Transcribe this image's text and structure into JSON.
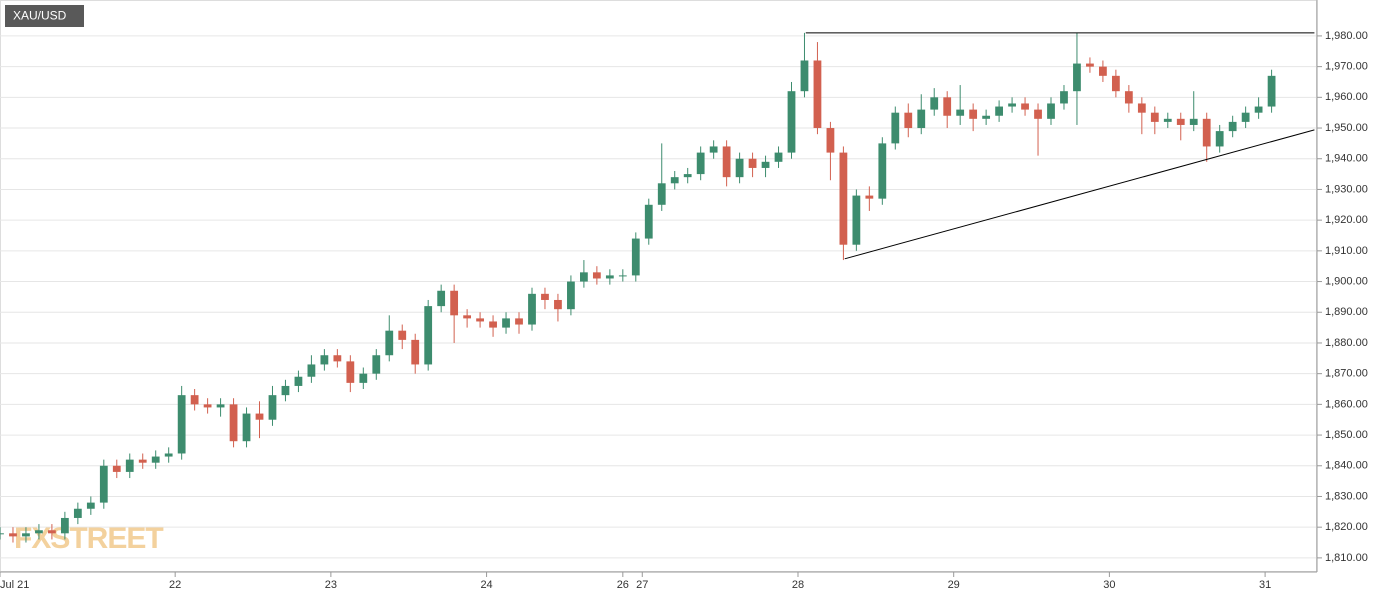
{
  "chart_data": {
    "type": "candlestick",
    "title": "XAU/USD",
    "watermark": "FXSTREET",
    "up_color": "#3d8c6e",
    "down_color": "#d2604f",
    "grid": true,
    "x": [
      0,
      2,
      4,
      6,
      8,
      10,
      12,
      14,
      16,
      18,
      20,
      22,
      24,
      26,
      28,
      30,
      32,
      34,
      36,
      38,
      40,
      42,
      44,
      46,
      48,
      50,
      52,
      54,
      56,
      58,
      60,
      62,
      64,
      66,
      68,
      70,
      72,
      74,
      76,
      78,
      80,
      82,
      84,
      86,
      88,
      90,
      92,
      94,
      96,
      98,
      100,
      102,
      104,
      106,
      108,
      110,
      112,
      114,
      116,
      118,
      120,
      122,
      124,
      126,
      128,
      130,
      132,
      134,
      136,
      138,
      140,
      142,
      144,
      146,
      148,
      150,
      152,
      154,
      156,
      158,
      160,
      162,
      164,
      166,
      168,
      170,
      172,
      174,
      176,
      178,
      180,
      182,
      184,
      186,
      188,
      190,
      192,
      194,
      196
    ],
    "open": [
      1818,
      1818,
      1817,
      1818,
      1819,
      1818,
      1823,
      1826,
      1828,
      1840,
      1838,
      1842,
      1841,
      1843,
      1844,
      1863,
      1860,
      1859,
      1860,
      1848,
      1857,
      1855,
      1863,
      1866,
      1869,
      1873,
      1876,
      1874,
      1867,
      1870,
      1876,
      1884,
      1881,
      1873,
      1892,
      1897,
      1889,
      1888,
      1887,
      1885,
      1888,
      1886,
      1896,
      1894,
      1891,
      1900,
      1903,
      1901,
      1902,
      1902,
      1914,
      1925,
      1932,
      1934,
      1935,
      1942,
      1944,
      1934,
      1940,
      1937,
      1939,
      1942,
      1962,
      1972,
      1950,
      1942,
      1912,
      1928,
      1927,
      1945,
      1955,
      1950,
      1956,
      1960,
      1954,
      1956,
      1953,
      1954,
      1957,
      1958,
      1956,
      1953,
      1958,
      1962,
      1971,
      1970,
      1967,
      1962,
      1958,
      1955,
      1952,
      1953,
      1951,
      1953,
      1944,
      1949,
      1952,
      1955,
      1957
    ],
    "high": [
      1820,
      1820,
      1820,
      1821,
      1821,
      1825,
      1828,
      1830,
      1842,
      1842,
      1844,
      1844,
      1845,
      1846,
      1866,
      1865,
      1862,
      1862,
      1862,
      1859,
      1861,
      1866,
      1868,
      1871,
      1876,
      1878,
      1878,
      1876,
      1872,
      1878,
      1889,
      1886,
      1883,
      1894,
      1899,
      1899,
      1891,
      1890,
      1889,
      1890,
      1890,
      1898,
      1898,
      1896,
      1902,
      1907,
      1905,
      1904,
      1904,
      1916,
      1927,
      1945,
      1936,
      1937,
      1944,
      1946,
      1946,
      1942,
      1942,
      1941,
      1944,
      1965,
      1981,
      1978,
      1952,
      1944,
      1930,
      1931,
      1947,
      1957,
      1958,
      1961,
      1963,
      1962,
      1964,
      1958,
      1956,
      1959,
      1960,
      1960,
      1958,
      1960,
      1964,
      1981,
      1973,
      1972,
      1969,
      1964,
      1960,
      1957,
      1955,
      1955,
      1962,
      1955,
      1951,
      1954,
      1957,
      1960,
      1969
    ],
    "low": [
      1816,
      1815,
      1815,
      1816,
      1816,
      1816,
      1821,
      1824,
      1826,
      1836,
      1836,
      1839,
      1839,
      1841,
      1842,
      1858,
      1857,
      1856,
      1846,
      1846,
      1849,
      1853,
      1861,
      1864,
      1867,
      1871,
      1872,
      1864,
      1865,
      1868,
      1874,
      1878,
      1870,
      1871,
      1890,
      1880,
      1885,
      1885,
      1882,
      1883,
      1883,
      1884,
      1891,
      1887,
      1889,
      1898,
      1899,
      1899,
      1900,
      1900,
      1912,
      1923,
      1930,
      1932,
      1933,
      1940,
      1931,
      1932,
      1934,
      1934,
      1937,
      1940,
      1960,
      1948,
      1933,
      1907,
      1910,
      1923,
      1925,
      1943,
      1947,
      1948,
      1954,
      1950,
      1951,
      1949,
      1951,
      1952,
      1955,
      1954,
      1941,
      1951,
      1956,
      1951,
      1968,
      1965,
      1960,
      1955,
      1948,
      1948,
      1950,
      1946,
      1949,
      1939,
      1942,
      1947,
      1950,
      1953,
      1955
    ],
    "close": [
      1818,
      1817,
      1818,
      1819,
      1818,
      1823,
      1826,
      1828,
      1840,
      1838,
      1842,
      1841,
      1843,
      1844,
      1863,
      1860,
      1859,
      1860,
      1848,
      1857,
      1855,
      1863,
      1866,
      1869,
      1873,
      1876,
      1874,
      1867,
      1870,
      1876,
      1884,
      1881,
      1873,
      1892,
      1897,
      1889,
      1888,
      1887,
      1885,
      1888,
      1886,
      1896,
      1894,
      1891,
      1900,
      1903,
      1901,
      1902,
      1902,
      1914,
      1925,
      1932,
      1934,
      1935,
      1942,
      1944,
      1934,
      1940,
      1937,
      1939,
      1942,
      1962,
      1972,
      1950,
      1942,
      1912,
      1928,
      1927,
      1945,
      1955,
      1950,
      1956,
      1960,
      1954,
      1956,
      1953,
      1954,
      1957,
      1958,
      1956,
      1953,
      1958,
      1962,
      1971,
      1970,
      1967,
      1962,
      1958,
      1955,
      1952,
      1953,
      1951,
      1953,
      1944,
      1949,
      1952,
      1955,
      1957,
      1967
    ],
    "trendlines": [
      {
        "x": [
          124.2,
          202.6
        ],
        "y": [
          1981,
          1981
        ]
      },
      {
        "x": [
          130.2,
          202.6
        ],
        "y": [
          1907.4,
          1949.4
        ]
      }
    ],
    "xlim": [
      0,
      203
    ],
    "xticks": [
      {
        "value": 0,
        "label": "Jul 21"
      },
      {
        "value": 27,
        "label": "22"
      },
      {
        "value": 51,
        "label": "23"
      },
      {
        "value": 75,
        "label": "24"
      },
      {
        "value": 96,
        "label": "26"
      },
      {
        "value": 99,
        "label": "27"
      },
      {
        "value": 123,
        "label": "28"
      },
      {
        "value": 147,
        "label": "29"
      },
      {
        "value": 171,
        "label": "30"
      },
      {
        "value": 195,
        "label": "31"
      }
    ],
    "ylim": [
      1805.4,
      1991.7
    ],
    "yticks": [
      {
        "value": 1810,
        "label": "1,810.00"
      },
      {
        "value": 1820,
        "label": "1,820.00"
      },
      {
        "value": 1830,
        "label": "1,830.00"
      },
      {
        "value": 1840,
        "label": "1,840.00"
      },
      {
        "value": 1850,
        "label": "1,850.00"
      },
      {
        "value": 1860,
        "label": "1,860.00"
      },
      {
        "value": 1870,
        "label": "1,870.00"
      },
      {
        "value": 1880,
        "label": "1,880.00"
      },
      {
        "value": 1890,
        "label": "1,890.00"
      },
      {
        "value": 1900,
        "label": "1,900.00"
      },
      {
        "value": 1910,
        "label": "1,910.00"
      },
      {
        "value": 1920,
        "label": "1,920.00"
      },
      {
        "value": 1930,
        "label": "1,930.00"
      },
      {
        "value": 1940,
        "label": "1,940.00"
      },
      {
        "value": 1950,
        "label": "1,950.00"
      },
      {
        "value": 1960,
        "label": "1,960.00"
      },
      {
        "value": 1970,
        "label": "1,970.00"
      },
      {
        "value": 1980,
        "label": "1,980.00"
      }
    ]
  }
}
